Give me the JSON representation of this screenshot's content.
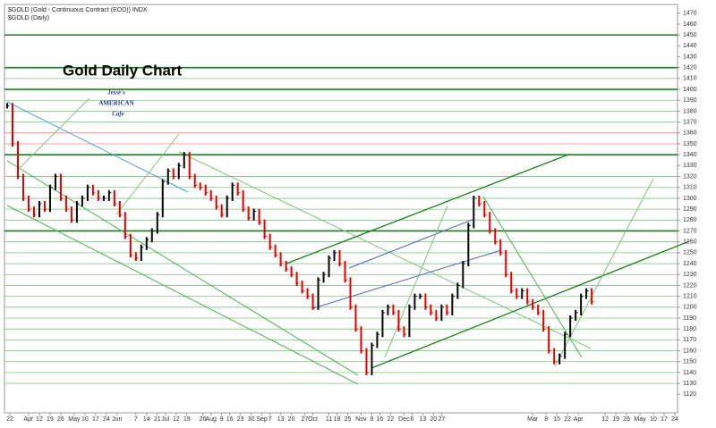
{
  "chart_data": {
    "type": "price-bars",
    "title": "$GOLD (Gold - Continuous Contract (EOD)) INDX",
    "subtitle": "$GOLD (Daily)",
    "annotation": "Gold Daily Chart",
    "logo": [
      "Jesse's",
      "AMERICAN",
      "Cafe"
    ],
    "x": [
      1,
      3,
      5,
      7,
      9,
      11,
      13,
      15,
      17,
      19,
      21,
      23,
      25,
      27,
      29,
      31,
      33,
      35,
      37,
      39,
      41,
      43,
      45,
      47,
      49,
      51,
      53,
      55,
      57,
      59,
      61,
      63,
      65,
      67,
      69,
      71,
      73,
      75,
      77,
      79,
      81,
      83,
      85,
      87,
      89,
      91,
      93,
      95,
      97,
      99,
      101,
      103,
      105,
      107,
      109,
      111,
      113,
      115,
      117,
      119,
      121,
      123,
      125,
      127,
      129,
      131,
      133,
      135,
      137,
      139,
      141,
      143,
      145,
      147,
      149,
      151,
      153,
      155,
      157,
      159,
      161,
      163,
      165,
      167,
      169,
      171,
      173,
      175,
      177,
      179,
      181,
      183,
      185,
      187,
      189,
      191,
      193,
      195,
      197,
      199,
      201,
      203,
      205,
      207,
      209,
      211,
      213,
      215,
      217,
      219
    ],
    "series": [
      {
        "up_color": "#000000",
        "down_color": "#e00000",
        "values": [
          1385,
          1350,
          1320,
          1300,
          1290,
          1285,
          1295,
          1290,
          1310,
          1320,
          1300,
          1290,
          1280,
          1295,
          1300,
          1310,
          1305,
          1300,
          1300,
          1305,
          1295,
          1285,
          1265,
          1248,
          1245,
          1255,
          1262,
          1270,
          1285,
          1315,
          1325,
          1320,
          1330,
          1340,
          1320,
          1312,
          1310,
          1305,
          1300,
          1292,
          1285,
          1300,
          1312,
          1305,
          1290,
          1282,
          1288,
          1278,
          1265,
          1255,
          1248,
          1240,
          1235,
          1230,
          1222,
          1215,
          1210,
          1200,
          1225,
          1230,
          1245,
          1250,
          1240,
          1225,
          1200,
          1180,
          1160,
          1140,
          1165,
          1175,
          1195,
          1200,
          1195,
          1180,
          1175,
          1200,
          1210,
          1210,
          1200,
          1195,
          1190,
          1200,
          1195,
          1210,
          1220,
          1240,
          1275,
          1300,
          1295,
          1285,
          1270,
          1260,
          1250,
          1230,
          1215,
          1210,
          1215,
          1205,
          1200,
          1195,
          1180,
          1160,
          1150,
          1155,
          1175,
          1190,
          1195,
          1210,
          1215,
          1205
        ]
      }
    ],
    "levels": [
      {
        "value": 1450,
        "color": "#1a7f1a"
      },
      {
        "value": 1420,
        "color": "#1a7f1a"
      },
      {
        "value": 1410,
        "color": "#7cc47c"
      },
      {
        "value": 1400,
        "color": "#1a7f1a"
      },
      {
        "value": 1390,
        "color": "#7cc47c"
      },
      {
        "value": 1380,
        "color": "#7cc47c"
      },
      {
        "value": 1370,
        "color": "#7cc47c"
      },
      {
        "value": 1360,
        "color": "#f08080"
      },
      {
        "value": 1350,
        "color": "#f08080"
      },
      {
        "value": 1340,
        "color": "#1a7f1a"
      },
      {
        "value": 1320,
        "color": "#f08080"
      },
      {
        "value": 1310,
        "color": "#7cc47c"
      },
      {
        "value": 1300,
        "color": "#7cc47c"
      },
      {
        "value": 1290,
        "color": "#7cc47c"
      },
      {
        "value": 1280,
        "color": "#7cc47c"
      },
      {
        "value": 1270,
        "color": "#1a7f1a"
      },
      {
        "value": 1260,
        "color": "#7cc47c"
      },
      {
        "value": 1250,
        "color": "#7cc47c"
      },
      {
        "value": 1240,
        "color": "#7cc47c"
      },
      {
        "value": 1230,
        "color": "#7cc47c"
      },
      {
        "value": 1220,
        "color": "#7cc47c"
      },
      {
        "value": 1210,
        "color": "#7cc47c"
      },
      {
        "value": 1200,
        "color": "#7cc47c"
      },
      {
        "value": 1190,
        "color": "#7cc47c"
      },
      {
        "value": 1180,
        "color": "#7cc47c"
      },
      {
        "value": 1170,
        "color": "#7cc47c"
      },
      {
        "value": 1160,
        "color": "#7cc47c"
      },
      {
        "value": 1150,
        "color": "#7cc47c"
      },
      {
        "value": 1140,
        "color": "#7cc47c"
      },
      {
        "value": 1130,
        "color": "#7cc47c"
      }
    ],
    "xlim": [
      0,
      251
    ],
    "ylim": [
      1103,
      1478
    ],
    "yticks": [
      1120,
      1130,
      1140,
      1150,
      1160,
      1170,
      1180,
      1190,
      1200,
      1210,
      1220,
      1230,
      1240,
      1250,
      1260,
      1270,
      1280,
      1290,
      1300,
      1310,
      1320,
      1330,
      1340,
      1350,
      1360,
      1370,
      1380,
      1390,
      1400,
      1410,
      1420,
      1430,
      1440,
      1450,
      1460,
      1470
    ],
    "xticks": [
      {
        "value": 2,
        "label": "22"
      },
      {
        "value": 9,
        "label": "Apr"
      },
      {
        "value": 13,
        "label": "12"
      },
      {
        "value": 17,
        "label": "19"
      },
      {
        "value": 21,
        "label": "26"
      },
      {
        "value": 26,
        "label": "May"
      },
      {
        "value": 30,
        "label": "10"
      },
      {
        "value": 34,
        "label": "17"
      },
      {
        "value": 38,
        "label": "24"
      },
      {
        "value": 42,
        "label": "Jun"
      },
      {
        "value": 49,
        "label": "7"
      },
      {
        "value": 53,
        "label": "14"
      },
      {
        "value": 57,
        "label": "21"
      },
      {
        "value": 60,
        "label": "Jul"
      },
      {
        "value": 64,
        "label": "12"
      },
      {
        "value": 68,
        "label": "19"
      },
      {
        "value": 74,
        "label": "26"
      },
      {
        "value": 77,
        "label": "Aug"
      },
      {
        "value": 81,
        "label": "9"
      },
      {
        "value": 84,
        "label": "16"
      },
      {
        "value": 88,
        "label": "23"
      },
      {
        "value": 92,
        "label": "30"
      },
      {
        "value": 96,
        "label": "Sep"
      },
      {
        "value": 99,
        "label": "7"
      },
      {
        "value": 103,
        "label": "13"
      },
      {
        "value": 107,
        "label": "20"
      },
      {
        "value": 112,
        "label": "27"
      },
      {
        "value": 115,
        "label": "Oct"
      },
      {
        "value": 121,
        "label": "11"
      },
      {
        "value": 124,
        "label": "18"
      },
      {
        "value": 128,
        "label": "25"
      },
      {
        "value": 133,
        "label": "Nov"
      },
      {
        "value": 137,
        "label": "8"
      },
      {
        "value": 140,
        "label": "16"
      },
      {
        "value": 144,
        "label": "22"
      },
      {
        "value": 149,
        "label": "Dec"
      },
      {
        "value": 152,
        "label": "6"
      },
      {
        "value": 156,
        "label": "13"
      },
      {
        "value": 160,
        "label": "20"
      },
      {
        "value": 163,
        "label": "27"
      },
      {
        "value": 197,
        "label": "Mar"
      },
      {
        "value": 202,
        "label": "8"
      },
      {
        "value": 206,
        "label": "15"
      },
      {
        "value": 210,
        "label": "22"
      },
      {
        "value": 214,
        "label": "Apr"
      },
      {
        "value": 224,
        "label": "12"
      },
      {
        "value": 228,
        "label": "19"
      },
      {
        "value": 232,
        "label": "26"
      },
      {
        "value": 237,
        "label": "May"
      },
      {
        "value": 242,
        "label": "10"
      },
      {
        "value": 246,
        "label": "17"
      },
      {
        "value": 250,
        "label": "24"
      }
    ]
  }
}
